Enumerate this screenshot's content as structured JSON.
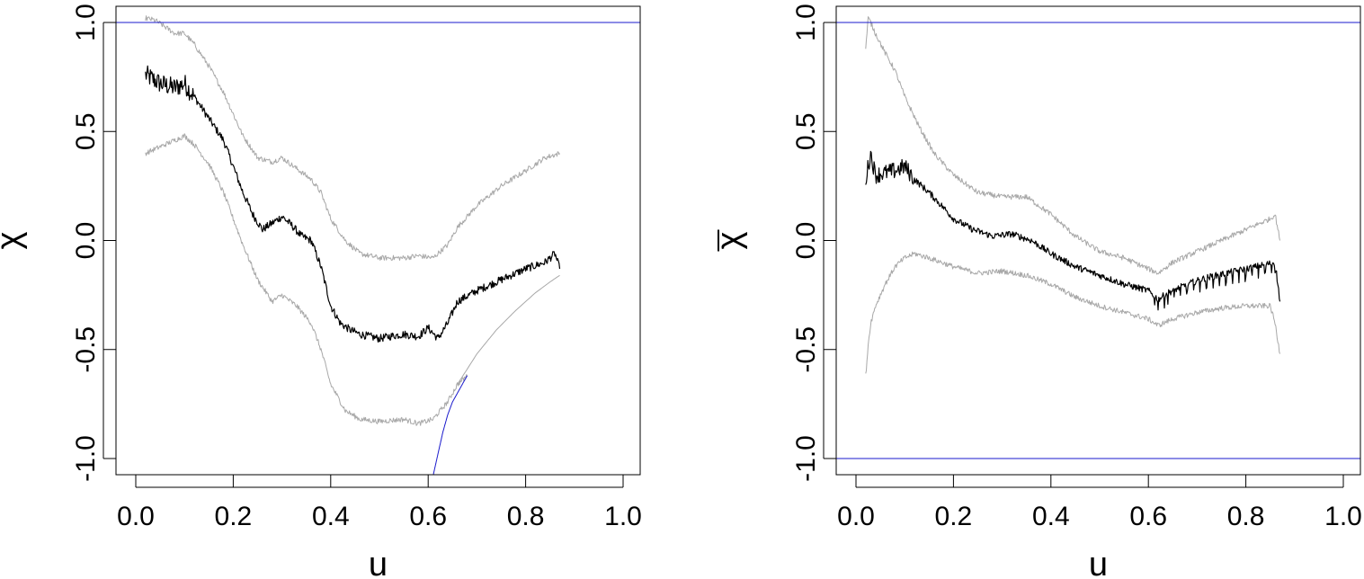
{
  "chart_data": [
    {
      "type": "line",
      "xlabel": "u",
      "ylabel": "χ",
      "ylabel_overbar": false,
      "xlim": [
        0,
        1
      ],
      "ylim": [
        -1,
        1
      ],
      "x_ticks": [
        "0.0",
        "0.2",
        "0.4",
        "0.6",
        "0.8",
        "1.0"
      ],
      "y_ticks": [
        "-1.0",
        "-0.5",
        "0.0",
        "0.5",
        "1.0"
      ],
      "grid": false,
      "colors": {
        "estimate": "#000000",
        "band": "#a8a8a8",
        "bound": "#1a1acc"
      },
      "series": [
        {
          "role": "estimate",
          "noise": 0.018,
          "x": [
            0.02,
            0.05,
            0.08,
            0.1,
            0.12,
            0.15,
            0.18,
            0.2,
            0.22,
            0.24,
            0.26,
            0.28,
            0.3,
            0.32,
            0.34,
            0.36,
            0.38,
            0.4,
            0.42,
            0.44,
            0.46,
            0.48,
            0.5,
            0.52,
            0.55,
            0.58,
            0.6,
            0.62,
            0.64,
            0.66,
            0.7,
            0.75,
            0.8,
            0.84,
            0.86,
            0.87
          ],
          "y": [
            0.76,
            0.72,
            0.7,
            0.72,
            0.66,
            0.56,
            0.46,
            0.34,
            0.22,
            0.12,
            0.05,
            0.08,
            0.11,
            0.07,
            0.02,
            0.0,
            -0.12,
            -0.3,
            -0.38,
            -0.41,
            -0.43,
            -0.44,
            -0.45,
            -0.44,
            -0.43,
            -0.44,
            -0.4,
            -0.45,
            -0.38,
            -0.28,
            -0.23,
            -0.18,
            -0.13,
            -0.1,
            -0.06,
            -0.13
          ]
        },
        {
          "role": "band",
          "x": [
            0.02,
            0.04,
            0.06,
            0.08,
            0.1,
            0.12,
            0.15,
            0.18,
            0.2,
            0.22,
            0.25,
            0.28,
            0.3,
            0.33,
            0.36,
            0.38,
            0.4,
            0.43,
            0.46,
            0.5,
            0.55,
            0.58,
            0.61,
            0.64,
            0.66,
            0.7,
            0.75,
            0.8,
            0.84,
            0.87
          ],
          "y": [
            1.02,
            1.01,
            0.98,
            0.95,
            0.95,
            0.9,
            0.8,
            0.68,
            0.58,
            0.48,
            0.38,
            0.36,
            0.38,
            0.33,
            0.28,
            0.22,
            0.1,
            0.0,
            -0.06,
            -0.08,
            -0.08,
            -0.07,
            -0.08,
            -0.02,
            0.06,
            0.16,
            0.25,
            0.32,
            0.38,
            0.4
          ],
          "noise": 0.012
        },
        {
          "role": "band",
          "x": [
            0.02,
            0.04,
            0.06,
            0.08,
            0.1,
            0.12,
            0.15,
            0.18,
            0.2,
            0.22,
            0.25,
            0.28,
            0.3,
            0.33,
            0.36,
            0.38,
            0.4,
            0.43,
            0.46,
            0.5,
            0.55,
            0.58,
            0.61,
            0.64,
            0.66,
            0.68
          ],
          "y": [
            0.4,
            0.42,
            0.44,
            0.46,
            0.48,
            0.44,
            0.35,
            0.22,
            0.1,
            -0.02,
            -0.18,
            -0.28,
            -0.25,
            -0.3,
            -0.38,
            -0.5,
            -0.66,
            -0.78,
            -0.82,
            -0.83,
            -0.82,
            -0.84,
            -0.82,
            -0.74,
            -0.66,
            -0.62
          ],
          "noise": 0.012
        },
        {
          "role": "band",
          "x": [
            0.66,
            0.7,
            0.74,
            0.78,
            0.82,
            0.85,
            0.87
          ],
          "y": [
            -0.66,
            -0.52,
            -0.41,
            -0.32,
            -0.24,
            -0.19,
            -0.16
          ],
          "noise": 0
        },
        {
          "role": "bound",
          "x": [
            0.61,
            0.62,
            0.63,
            0.64,
            0.65,
            0.66,
            0.67,
            0.68
          ],
          "y": [
            -1.08,
            -0.98,
            -0.88,
            -0.8,
            -0.74,
            -0.7,
            -0.66,
            -0.62
          ],
          "noise": 0
        },
        {
          "role": "bound",
          "x": [
            -0.04,
            1.04
          ],
          "y": [
            1.0,
            1.0
          ],
          "noise": 0
        }
      ]
    },
    {
      "type": "line",
      "xlabel": "u",
      "ylabel": "χ",
      "ylabel_overbar": true,
      "xlim": [
        0,
        1
      ],
      "ylim": [
        -1,
        1
      ],
      "x_ticks": [
        "0.0",
        "0.2",
        "0.4",
        "0.6",
        "0.8",
        "1.0"
      ],
      "y_ticks": [
        "-1.0",
        "-0.5",
        "0.0",
        "0.5",
        "1.0"
      ],
      "grid": false,
      "colors": {
        "estimate": "#000000",
        "band": "#a8a8a8",
        "bound": "#1a1acc"
      },
      "series": [
        {
          "role": "estimate",
          "noise": 0.015,
          "x": [
            0.02,
            0.03,
            0.04,
            0.06,
            0.08,
            0.1,
            0.12,
            0.15,
            0.18,
            0.2,
            0.24,
            0.28,
            0.32,
            0.36,
            0.4,
            0.45,
            0.5,
            0.55,
            0.6,
            0.62,
            0.64,
            0.68,
            0.72,
            0.76,
            0.8,
            0.84,
            0.86,
            0.87
          ],
          "y": [
            0.28,
            0.4,
            0.3,
            0.31,
            0.32,
            0.34,
            0.28,
            0.22,
            0.15,
            0.1,
            0.05,
            0.02,
            0.03,
            0.0,
            -0.06,
            -0.12,
            -0.16,
            -0.2,
            -0.23,
            -0.27,
            -0.24,
            -0.2,
            -0.17,
            -0.15,
            -0.13,
            -0.11,
            -0.1,
            -0.28
          ],
          "sawtooth": true
        },
        {
          "role": "band",
          "x": [
            0.02,
            0.025,
            0.03,
            0.04,
            0.06,
            0.08,
            0.1,
            0.13,
            0.16,
            0.2,
            0.25,
            0.3,
            0.35,
            0.4,
            0.45,
            0.5,
            0.55,
            0.6,
            0.62,
            0.65,
            0.7,
            0.75,
            0.8,
            0.85,
            0.86,
            0.87
          ],
          "y": [
            0.88,
            1.02,
            1.0,
            0.95,
            0.86,
            0.78,
            0.66,
            0.52,
            0.4,
            0.3,
            0.22,
            0.2,
            0.2,
            0.12,
            0.02,
            -0.05,
            -0.08,
            -0.13,
            -0.15,
            -0.1,
            -0.05,
            0.0,
            0.05,
            0.1,
            0.12,
            0.0
          ],
          "noise": 0.012
        },
        {
          "role": "band",
          "x": [
            0.02,
            0.025,
            0.03,
            0.04,
            0.06,
            0.08,
            0.1,
            0.12,
            0.15,
            0.2,
            0.25,
            0.3,
            0.35,
            0.4,
            0.45,
            0.5,
            0.55,
            0.6,
            0.62,
            0.65,
            0.7,
            0.75,
            0.8,
            0.85,
            0.86,
            0.87
          ],
          "y": [
            -0.62,
            -0.48,
            -0.38,
            -0.3,
            -0.2,
            -0.12,
            -0.08,
            -0.06,
            -0.08,
            -0.12,
            -0.15,
            -0.14,
            -0.16,
            -0.2,
            -0.26,
            -0.3,
            -0.33,
            -0.36,
            -0.39,
            -0.36,
            -0.33,
            -0.31,
            -0.3,
            -0.3,
            -0.38,
            -0.52
          ],
          "noise": 0.012
        },
        {
          "role": "bound",
          "x": [
            -0.04,
            1.04
          ],
          "y": [
            1.0,
            1.0
          ],
          "noise": 0
        },
        {
          "role": "bound",
          "x": [
            -0.04,
            1.04
          ],
          "y": [
            -1.0,
            -1.0
          ],
          "noise": 0
        }
      ]
    }
  ]
}
